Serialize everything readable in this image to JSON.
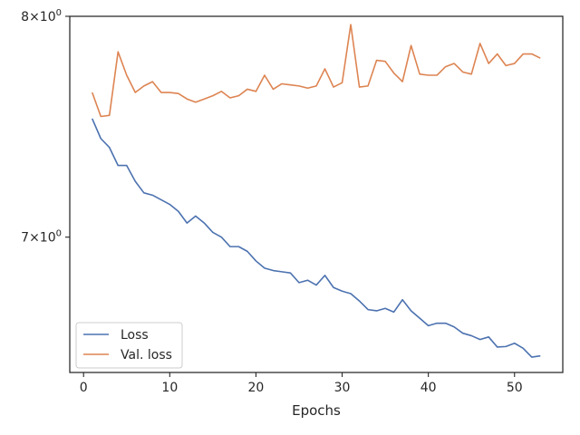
{
  "chart_data": {
    "type": "line",
    "xlabel": "Epochs",
    "ylabel": "",
    "yscale": "log",
    "xlim": [
      -1.6,
      55.6
    ],
    "ylim": [
      6.45,
      8.0
    ],
    "xticks": [
      0,
      10,
      20,
      30,
      40,
      50
    ],
    "xtick_labels": [
      "0",
      "10",
      "20",
      "30",
      "40",
      "50"
    ],
    "yticks": [
      7.0,
      8.0
    ],
    "ytick_labels": [
      {
        "base": "7",
        "times": "×",
        "ten": "10",
        "exp": "0"
      },
      {
        "base": "8",
        "times": "×",
        "ten": "10",
        "exp": "0"
      }
    ],
    "grid": false,
    "legend": "lower-left",
    "x": [
      1,
      2,
      3,
      4,
      5,
      6,
      7,
      8,
      9,
      10,
      11,
      12,
      13,
      14,
      15,
      16,
      17,
      18,
      19,
      20,
      21,
      22,
      23,
      24,
      25,
      26,
      27,
      28,
      29,
      30,
      31,
      32,
      33,
      34,
      35,
      36,
      37,
      38,
      39,
      40,
      41,
      42,
      43,
      44,
      45,
      46,
      47,
      48,
      49,
      50,
      51,
      52,
      53
    ],
    "series": [
      {
        "name": "Loss",
        "color": "#4c72b0",
        "values": [
          7.52,
          7.43,
          7.39,
          7.31,
          7.31,
          7.24,
          7.19,
          7.18,
          7.16,
          7.14,
          7.11,
          7.06,
          7.09,
          7.06,
          7.02,
          7.0,
          6.96,
          6.96,
          6.94,
          6.9,
          6.87,
          6.86,
          6.855,
          6.85,
          6.81,
          6.82,
          6.8,
          6.84,
          6.79,
          6.775,
          6.765,
          6.735,
          6.7,
          6.695,
          6.705,
          6.69,
          6.74,
          6.695,
          6.665,
          6.635,
          6.645,
          6.645,
          6.63,
          6.605,
          6.595,
          6.58,
          6.59,
          6.55,
          6.552,
          6.565,
          6.545,
          6.51,
          6.515
        ]
      },
      {
        "name": "Val. loss",
        "color": "#dd8452",
        "values": [
          7.64,
          7.53,
          7.535,
          7.83,
          7.72,
          7.64,
          7.67,
          7.69,
          7.64,
          7.64,
          7.635,
          7.61,
          7.595,
          7.61,
          7.625,
          7.645,
          7.615,
          7.625,
          7.655,
          7.645,
          7.72,
          7.655,
          7.68,
          7.675,
          7.67,
          7.66,
          7.67,
          7.75,
          7.665,
          7.685,
          7.96,
          7.665,
          7.67,
          7.79,
          7.785,
          7.73,
          7.69,
          7.86,
          7.725,
          7.72,
          7.72,
          7.76,
          7.775,
          7.735,
          7.725,
          7.87,
          7.775,
          7.82,
          7.765,
          7.775,
          7.82,
          7.82,
          7.8
        ]
      }
    ]
  }
}
